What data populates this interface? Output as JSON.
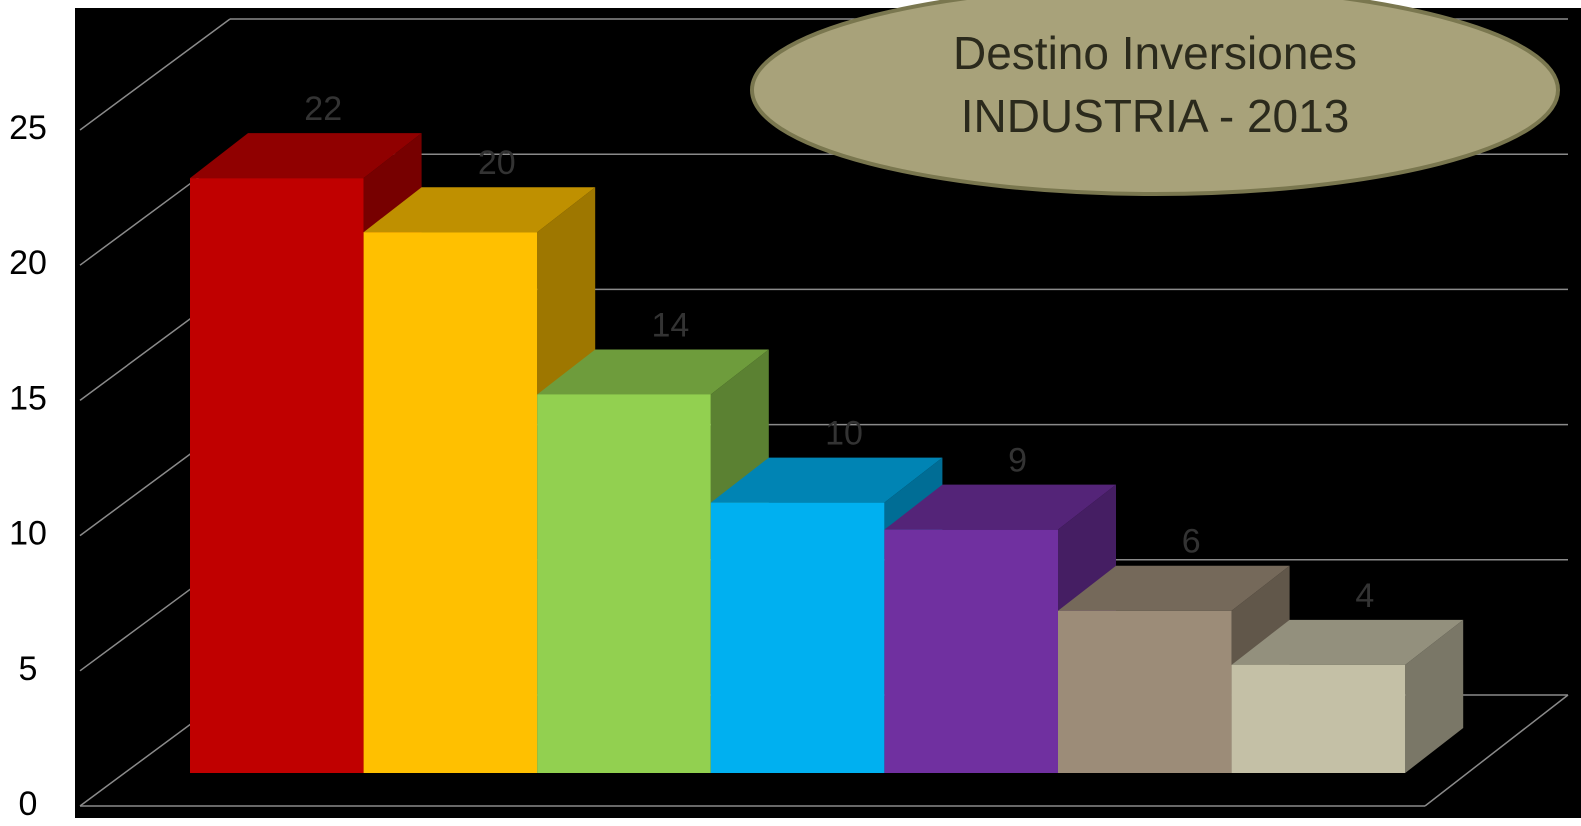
{
  "chart_data": {
    "type": "bar3d",
    "title": [
      "Destino Inversiones",
      "INDUSTRIA - 2013"
    ],
    "categories": [
      null,
      null,
      null,
      null,
      null,
      null,
      null
    ],
    "values": [
      22,
      20,
      14,
      10,
      9,
      6,
      4
    ],
    "colors": [
      "#c00000",
      "#ffc000",
      "#92d050",
      "#00b0f0",
      "#7030a0",
      "#9c8c78",
      "#c4c0a6"
    ],
    "ylim": [
      0,
      25
    ],
    "yticks": [
      0,
      5,
      10,
      15,
      20,
      25
    ],
    "grid": true
  }
}
